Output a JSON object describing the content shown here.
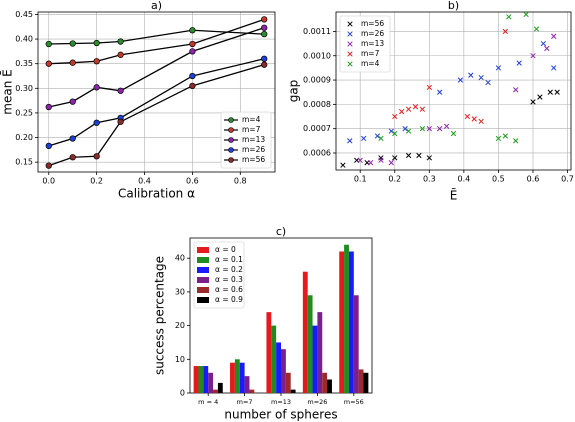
{
  "chart_data": [
    {
      "type": "line",
      "title": "a)",
      "xlabel": "Calibration α",
      "ylabel": "mean Ē",
      "x": [
        0,
        0.1,
        0.2,
        0.3,
        0.6,
        0.9
      ],
      "xlim": [
        -0.045,
        0.945
      ],
      "xticks": [
        {
          "value": 0,
          "label": "0.0"
        },
        0.2,
        0.4,
        0.6,
        0.8
      ],
      "ylim": [
        0.13,
        0.455
      ],
      "yticks": [
        0.15,
        {
          "value": 0.2,
          "label": "0.20"
        },
        0.25,
        {
          "value": 0.3,
          "label": "0.30"
        },
        0.35,
        {
          "value": 0.4,
          "label": "0.40"
        },
        0.45
      ],
      "grid": true,
      "legend": "lower right",
      "line_color": "#000000",
      "series": [
        {
          "name": "m=4",
          "color": "#2e8b2e",
          "values": [
            0.39,
            0.391,
            0.392,
            0.395,
            0.418,
            0.41
          ]
        },
        {
          "name": "m=7",
          "color": "#c0392b",
          "values": [
            0.35,
            0.352,
            0.355,
            0.368,
            0.39,
            0.44
          ]
        },
        {
          "name": "m=13",
          "color": "#8e24aa",
          "values": [
            0.262,
            0.273,
            0.302,
            0.295,
            0.375,
            0.423
          ]
        },
        {
          "name": "m=26",
          "color": "#1f3fd6",
          "values": [
            0.183,
            0.198,
            0.23,
            0.24,
            0.325,
            0.36
          ]
        },
        {
          "name": "m=56",
          "color": "#8b2a2a",
          "values": [
            0.143,
            0.16,
            0.162,
            0.232,
            0.305,
            0.348
          ]
        }
      ]
    },
    {
      "type": "scatter",
      "title": "b)",
      "xlabel": "Ẽ",
      "ylabel": "gap",
      "xlim": [
        0.03,
        0.71
      ],
      "xticks": [
        0.1,
        0.2,
        0.3,
        0.4,
        0.5,
        0.6,
        0.7
      ],
      "ylim": [
        0.00053,
        0.00118
      ],
      "yticks": [
        0.0006,
        0.0007,
        0.0008,
        0.0009,
        {
          "value": 0.001,
          "label": "0.0010"
        },
        0.0011
      ],
      "grid": true,
      "legend": "upper left",
      "series": [
        {
          "name": "m=56",
          "color": "#000000",
          "x": [
            0.05,
            0.09,
            0.12,
            0.16,
            0.2,
            0.24,
            0.27,
            0.3,
            0.6,
            0.62,
            0.65,
            0.67
          ],
          "values": [
            0.00055,
            0.00057,
            0.00056,
            0.00058,
            0.00058,
            0.00059,
            0.00059,
            0.00058,
            0.00081,
            0.00083,
            0.00085,
            0.00085
          ]
        },
        {
          "name": "m=26",
          "color": "#1f3fd6",
          "x": [
            0.07,
            0.11,
            0.15,
            0.19,
            0.23,
            0.33,
            0.39,
            0.42,
            0.45,
            0.47,
            0.5,
            0.56,
            0.63,
            0.66
          ],
          "values": [
            0.00065,
            0.00066,
            0.00067,
            0.00069,
            0.0007,
            0.00085,
            0.0009,
            0.00092,
            0.00091,
            0.00089,
            0.00095,
            0.00097,
            0.00105,
            0.00095
          ]
        },
        {
          "name": "m=13",
          "color": "#8e24aa",
          "x": [
            0.1,
            0.13,
            0.16,
            0.19,
            0.3,
            0.33,
            0.35,
            0.55,
            0.6,
            0.64,
            0.66
          ],
          "values": [
            0.00057,
            0.00056,
            0.00057,
            0.00056,
            0.0007,
            0.0007,
            0.00071,
            0.00086,
            0.001,
            0.00103,
            0.00108
          ],
          "marker": "x"
        },
        {
          "name": "m=7",
          "color": "#e02020",
          "x": [
            0.2,
            0.22,
            0.24,
            0.26,
            0.28,
            0.3,
            0.41,
            0.43,
            0.45,
            0.52
          ],
          "values": [
            0.00075,
            0.00077,
            0.00078,
            0.00079,
            0.00078,
            0.00087,
            0.00075,
            0.00074,
            0.00073,
            0.0011
          ]
        },
        {
          "name": "m=4",
          "color": "#1e9a1e",
          "x": [
            0.16,
            0.2,
            0.24,
            0.28,
            0.37,
            0.5,
            0.52,
            0.55,
            0.53,
            0.58,
            0.61
          ],
          "values": [
            0.00066,
            0.00068,
            0.00069,
            0.0007,
            0.00068,
            0.00066,
            0.00067,
            0.00065,
            0.00116,
            0.00117,
            0.00111
          ]
        }
      ]
    },
    {
      "type": "bar",
      "title": "c)",
      "xlabel": "number of spheres",
      "ylabel": "success percentage",
      "categories": [
        "m = 4",
        "m=7",
        "m=13",
        "m=26",
        "m=56"
      ],
      "ylim": [
        0,
        46
      ],
      "yticks": [
        0,
        10,
        20,
        30,
        40
      ],
      "legend": "upper left",
      "series": [
        {
          "name": "α = 0",
          "color": "#e41a1c",
          "values": [
            8,
            9,
            24,
            36,
            42
          ]
        },
        {
          "name": "α = 0.1",
          "color": "#1e8c1e",
          "values": [
            8,
            10,
            20,
            29,
            44
          ]
        },
        {
          "name": "α = 0.2",
          "color": "#1a1aff",
          "values": [
            8,
            9,
            15,
            20,
            42
          ]
        },
        {
          "name": "α = 0.3",
          "color": "#7b1f8c",
          "values": [
            6,
            5,
            13,
            24,
            29
          ]
        },
        {
          "name": "α = 0.6",
          "color": "#9c2a2a",
          "values": [
            1,
            1,
            6,
            6,
            7
          ]
        },
        {
          "name": "α = 0.9",
          "color": "#000000",
          "values": [
            3,
            0,
            1,
            4,
            6
          ]
        }
      ]
    }
  ]
}
